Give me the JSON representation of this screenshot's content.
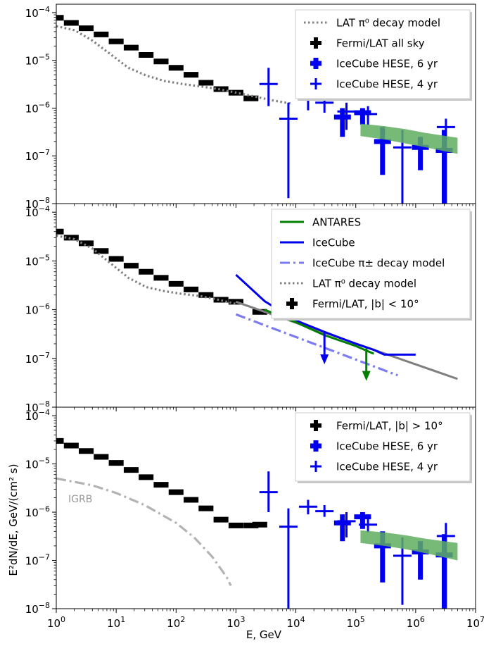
{
  "figure": {
    "ylabel": "E²dN/dE, GeV/(cm² s)",
    "xlabel": "E, GeV"
  },
  "chart_data": [
    {
      "type": "line",
      "xscale": "log",
      "yscale": "log",
      "xlim": [
        1,
        10000000
      ],
      "ylim": [
        1e-08,
        0.00015
      ],
      "legend_position": "top-right",
      "legend": [
        {
          "label": "LAT π⁰ decay model",
          "style": "dotted",
          "color": "#808080"
        },
        {
          "label": "Fermi/LAT all sky",
          "style": "cross",
          "color": "#000000"
        },
        {
          "label": "IceCube HESE, 6 yr",
          "style": "bigcross",
          "color": "#0000ee"
        },
        {
          "label": "IceCube HESE, 4 yr",
          "style": "cross",
          "color": "#0000ee"
        }
      ],
      "series": [
        {
          "name": "Fermi/LAT all sky",
          "kind": "bins",
          "color": "#000000",
          "width": 6,
          "x": [
            1.0,
            1.78,
            3.16,
            5.62,
            10,
            17.8,
            31.6,
            56.2,
            100,
            178,
            316,
            562,
            1000,
            1780
          ],
          "y": [
            7.8e-05,
            6.1e-05,
            4.7e-05,
            3.5e-05,
            2.5e-05,
            1.85e-05,
            1.3e-05,
            9.5e-06,
            7e-06,
            5e-06,
            3.4e-06,
            2.5e-06,
            2.1e-06,
            1.6e-06
          ]
        },
        {
          "name": "LAT π⁰ decay model",
          "kind": "dotted",
          "color": "#808080",
          "x": [
            1,
            2,
            4,
            8,
            16,
            32,
            64,
            128,
            256,
            512,
            1024,
            2048,
            4096,
            8192
          ],
          "y": [
            5.2e-05,
            4.3e-05,
            2.6e-05,
            1.35e-05,
            7e-06,
            4.8e-06,
            3.7e-06,
            3.2e-06,
            2.85e-06,
            2.5e-06,
            2.1e-06,
            1.75e-06,
            1.45e-06,
            1.25e-06
          ]
        },
        {
          "name": "IceCube HESE, 6 yr",
          "kind": "errbars",
          "color": "#0000ee",
          "width": 7,
          "x": [
            60000,
            130000,
            280000,
            1200000,
            3000000
          ],
          "y": [
            6.5e-07,
            8e-07,
            2e-07,
            1.5e-07,
            1.3e-07
          ],
          "yerr_low": [
            2.5e-07,
            4.5e-07,
            4e-08,
            5e-08,
            1e-08
          ],
          "yerr_high": [
            1e-06,
            1e-06,
            4e-07,
            2.5e-07,
            3.5e-07
          ]
        },
        {
          "name": "IceCube HESE, 4 yr",
          "kind": "errbars",
          "color": "#0000ee",
          "width": 3,
          "x": [
            3500,
            7500,
            16000,
            30000,
            70000,
            160000,
            600000,
            3200000
          ],
          "y": [
            3.2e-06,
            6e-07,
            1.6e-06,
            1.3e-06,
            8.5e-07,
            7.5e-07,
            1.5e-07,
            4e-07
          ],
          "yerr_low": [
            1.1e-06,
            1.3e-08,
            9e-07,
            8e-07,
            3.5e-07,
            4.5e-07,
            1e-08,
            1e-08
          ],
          "yerr_high": [
            7e-06,
            1.3e-06,
            2.3e-06,
            1.9e-06,
            1.3e-06,
            1.1e-06,
            3.5e-07,
            6e-07
          ]
        },
        {
          "name": "band",
          "kind": "band",
          "color": "#5fad5f",
          "x": [
            120000,
            300000,
            700000,
            1500000,
            5000000
          ],
          "y_low": [
            2.6e-07,
            2.2e-07,
            1.8e-07,
            1.5e-07,
            1.1e-07
          ],
          "y_high": [
            4.7e-07,
            4.2e-07,
            3.6e-07,
            3e-07,
            2.4e-07
          ]
        }
      ]
    },
    {
      "type": "line",
      "xscale": "log",
      "yscale": "log",
      "xlim": [
        1,
        10000000
      ],
      "ylim": [
        1e-08,
        0.00015
      ],
      "legend_position": "top-right",
      "legend": [
        {
          "label": "ANTARES",
          "style": "solid",
          "color": "#007f00"
        },
        {
          "label": "IceCube",
          "style": "solid",
          "color": "#0000ee"
        },
        {
          "label": "IceCube π± decay model",
          "style": "dashdot",
          "color": "#7b7bf2"
        },
        {
          "label": "LAT π⁰ decay model",
          "style": "dotted",
          "color": "#808080"
        },
        {
          "label": "Fermi/LAT, |b| < 10°",
          "style": "cross",
          "color": "#000000"
        }
      ],
      "series": [
        {
          "name": "Fermi/LAT, |b| < 10°",
          "kind": "bins",
          "color": "#000000",
          "width": 6,
          "x": [
            1.0,
            1.78,
            3.16,
            5.62,
            10,
            17.8,
            31.6,
            56.2,
            100,
            178,
            316,
            562,
            1000,
            2500
          ],
          "y": [
            4e-05,
            3e-05,
            2.3e-05,
            1.6e-05,
            1.1e-05,
            8e-06,
            6e-06,
            4.5e-06,
            3.4e-06,
            2.6e-06,
            2e-06,
            1.6e-06,
            1.45e-06,
            9e-07
          ]
        },
        {
          "name": "LAT π⁰ decay model",
          "kind": "dotted",
          "color": "#808080",
          "x": [
            1,
            2,
            4,
            8,
            16,
            32,
            64,
            128,
            256,
            512,
            1024
          ],
          "y": [
            3.3e-05,
            2.8e-05,
            1.8e-05,
            9e-06,
            4.5e-06,
            2.9e-06,
            2.4e-06,
            2.1e-06,
            1.9e-06,
            1.6e-06,
            1.3e-06
          ]
        },
        {
          "name": "gray",
          "kind": "solid",
          "color": "#7f7f7f",
          "width": 3,
          "x": [
            1000,
            5000000
          ],
          "y": [
            1.45e-06,
            3.8e-08
          ]
        },
        {
          "name": "IceCube π± decay model",
          "kind": "dashdot",
          "color": "#7b7bf2",
          "x": [
            1000,
            500000
          ],
          "y": [
            8e-07,
            4.5e-08
          ]
        },
        {
          "name": "IceCube",
          "kind": "solid",
          "color": "#0000ee",
          "width": 3,
          "x": [
            1000,
            3000,
            10000,
            30000,
            100000,
            200000,
            300000,
            1000000
          ],
          "y": [
            5.2e-06,
            1.5e-06,
            6e-07,
            3.5e-07,
            2e-07,
            1.5e-07,
            1.2e-07,
            1.2e-07
          ]
        },
        {
          "name": "ANTARES",
          "kind": "solid",
          "color": "#007f00",
          "width": 3,
          "x": [
            3000,
            10000,
            30000,
            100000,
            200000
          ],
          "y": [
            1e-06,
            5.5e-07,
            3e-07,
            1.8e-07,
            1.25e-07
          ]
        },
        {
          "name": "IceCube upper limit",
          "kind": "arrow",
          "color": "#0000ee",
          "x": [
            30000
          ],
          "y": [
            3.5e-07
          ]
        },
        {
          "name": "ANTARES upper limit",
          "kind": "arrow",
          "color": "#007f00",
          "x": [
            150000
          ],
          "y": [
            1.6e-07
          ]
        }
      ]
    },
    {
      "type": "line",
      "xscale": "log",
      "yscale": "log",
      "xlim": [
        1,
        10000000
      ],
      "ylim": [
        1e-08,
        0.00015
      ],
      "legend_position": "top-right",
      "annotations": [
        "IGRB"
      ],
      "legend": [
        {
          "label": "Fermi/LAT, |b| > 10°",
          "style": "cross",
          "color": "#000000"
        },
        {
          "label": "IceCube HESE, 6 yr",
          "style": "bigcross",
          "color": "#0000ee"
        },
        {
          "label": "IceCube HESE, 4 yr",
          "style": "cross",
          "color": "#0000ee"
        }
      ],
      "series": [
        {
          "name": "Fermi/LAT, |b| > 10°",
          "kind": "bins",
          "color": "#000000",
          "width": 6,
          "x": [
            1.0,
            1.78,
            3.16,
            5.62,
            10,
            17.8,
            31.6,
            56.2,
            100,
            178,
            316,
            562,
            1000,
            1780,
            2500
          ],
          "y": [
            3e-05,
            2.4e-05,
            1.85e-05,
            1.4e-05,
            1.05e-05,
            7.5e-06,
            5.3e-06,
            3.7e-06,
            2.6e-06,
            1.8e-06,
            1.2e-06,
            7e-07,
            5.3e-07,
            5.3e-07,
            5.5e-07
          ]
        },
        {
          "name": "IGRB",
          "kind": "dashdot",
          "color": "#b3b3b3",
          "x": [
            1,
            4,
            10,
            30,
            100,
            200,
            400,
            700,
            820
          ],
          "y": [
            5e-06,
            3.6e-06,
            2.5e-06,
            1.4e-06,
            6e-07,
            3e-07,
            1.2e-07,
            4.5e-08,
            3e-08
          ]
        },
        {
          "name": "IceCube HESE, 6 yr",
          "kind": "errbars",
          "color": "#0000ee",
          "width": 7,
          "x": [
            60000,
            130000,
            280000,
            1200000,
            3000000
          ],
          "y": [
            6e-07,
            8e-07,
            2e-07,
            1.5e-07,
            1.3e-07
          ],
          "yerr_low": [
            2.5e-07,
            4.5e-07,
            3.5e-08,
            4e-08,
            1e-08
          ],
          "yerr_high": [
            9e-07,
            1e-06,
            4e-07,
            2.5e-07,
            3.5e-07
          ]
        },
        {
          "name": "IceCube HESE, 4 yr",
          "kind": "errbars",
          "color": "#0000ee",
          "width": 3,
          "x": [
            3500,
            7500,
            16000,
            30000,
            70000,
            160000,
            600000,
            3200000
          ],
          "y": [
            2.6e-06,
            5e-07,
            1.3e-06,
            1.05e-06,
            6.5e-07,
            5.5e-07,
            1.25e-07,
            3.2e-07
          ],
          "yerr_low": [
            1e-06,
            1e-08,
            9e-07,
            8e-07,
            3e-07,
            3.8e-07,
            1.2e-08,
            1e-08
          ],
          "yerr_high": [
            7e-06,
            1.2e-06,
            1.8e-06,
            1.4e-06,
            1e-06,
            9e-07,
            3e-07,
            6e-07
          ]
        },
        {
          "name": "band",
          "kind": "band",
          "color": "#5fad5f",
          "x": [
            120000,
            300000,
            700000,
            1500000,
            5000000
          ],
          "y_low": [
            2.3e-07,
            2e-07,
            1.7e-07,
            1.4e-07,
            1e-07
          ],
          "y_high": [
            4.2e-07,
            3.8e-07,
            3.3e-07,
            2.8e-07,
            2.3e-07
          ]
        }
      ]
    }
  ]
}
